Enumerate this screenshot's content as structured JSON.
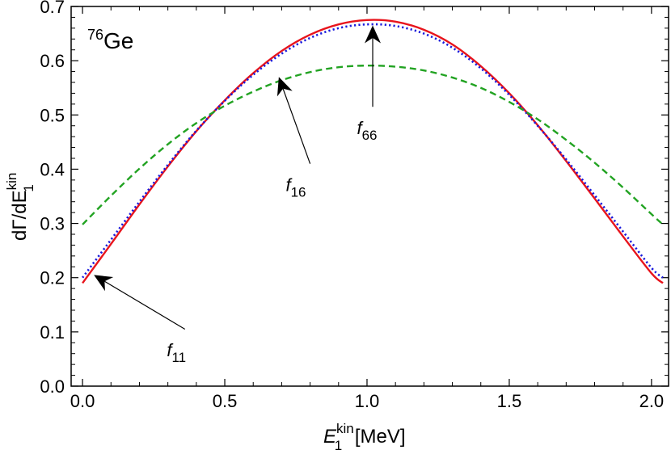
{
  "chart_data": {
    "type": "line",
    "title": "",
    "panel_label": {
      "sup": "76",
      "main": "Ge"
    },
    "xlabel": {
      "main": "E",
      "sub": "1",
      "sup": "kin",
      "unit": " [MeV]"
    },
    "ylabel": {
      "main": "dΓ/dE",
      "sub": "1",
      "sup": "kin"
    },
    "xlim": [
      -0.04,
      2.06
    ],
    "ylim": [
      0.0,
      0.7
    ],
    "x_ticks": [
      0.0,
      0.5,
      1.0,
      1.5,
      2.0
    ],
    "x_tick_labels": [
      "0.0",
      "0.5",
      "1.0",
      "1.5",
      "2.0"
    ],
    "y_ticks": [
      0.0,
      0.1,
      0.2,
      0.3,
      0.4,
      0.5,
      0.6,
      0.7
    ],
    "y_tick_labels": [
      "0.0",
      "0.1",
      "0.2",
      "0.3",
      "0.4",
      "0.5",
      "0.6",
      "0.7"
    ],
    "grid": false,
    "legend": "none",
    "series": [
      {
        "color": "#e8141c",
        "dash": "solid",
        "x": [
          0.0,
          0.1,
          0.2,
          0.3,
          0.4,
          0.5,
          0.6,
          0.7,
          0.8,
          0.9,
          1.0,
          1.1,
          1.2,
          1.3,
          1.4,
          1.5,
          1.6,
          1.7,
          1.8,
          1.9,
          2.0,
          2.04
        ],
        "y": [
          0.19,
          0.262,
          0.335,
          0.405,
          0.47,
          0.527,
          0.577,
          0.618,
          0.648,
          0.667,
          0.675,
          0.672,
          0.657,
          0.63,
          0.59,
          0.54,
          0.481,
          0.415,
          0.346,
          0.276,
          0.208,
          0.19
        ]
      },
      {
        "color": "#1a1adc",
        "dash": "dotted",
        "x": [
          0.0,
          0.1,
          0.2,
          0.3,
          0.4,
          0.5,
          0.6,
          0.7,
          0.8,
          0.9,
          1.0,
          1.1,
          1.2,
          1.3,
          1.4,
          1.5,
          1.6,
          1.7,
          1.8,
          1.9,
          2.0,
          2.04
        ],
        "y": [
          0.2,
          0.27,
          0.34,
          0.408,
          0.471,
          0.526,
          0.574,
          0.613,
          0.642,
          0.66,
          0.667,
          0.664,
          0.65,
          0.624,
          0.586,
          0.537,
          0.48,
          0.418,
          0.352,
          0.285,
          0.218,
          0.2
        ]
      },
      {
        "color": "#22a322",
        "dash": "dashed",
        "x": [
          0.0,
          0.1,
          0.2,
          0.3,
          0.4,
          0.5,
          0.6,
          0.7,
          0.8,
          0.9,
          1.0,
          1.1,
          1.2,
          1.3,
          1.4,
          1.5,
          1.6,
          1.7,
          1.8,
          1.9,
          2.0,
          2.04
        ],
        "y": [
          0.298,
          0.351,
          0.401,
          0.446,
          0.485,
          0.517,
          0.543,
          0.564,
          0.579,
          0.588,
          0.591,
          0.589,
          0.582,
          0.569,
          0.55,
          0.524,
          0.492,
          0.454,
          0.412,
          0.366,
          0.317,
          0.298
        ]
      }
    ],
    "annotations": [
      {
        "label": "f",
        "sub": "11",
        "tip": [
          0.04,
          0.205
        ],
        "tail": [
          0.36,
          0.105
        ],
        "text_at": [
          0.33,
          0.055
        ]
      },
      {
        "label": "f",
        "sub": "16",
        "tip": [
          0.69,
          0.57
        ],
        "tail": [
          0.8,
          0.41
        ],
        "text_at": [
          0.75,
          0.36
        ]
      },
      {
        "label": "f",
        "sub": "66",
        "tip": [
          1.02,
          0.665
        ],
        "tail": [
          1.02,
          0.515
        ],
        "text_at": [
          1.0,
          0.465
        ]
      }
    ]
  }
}
